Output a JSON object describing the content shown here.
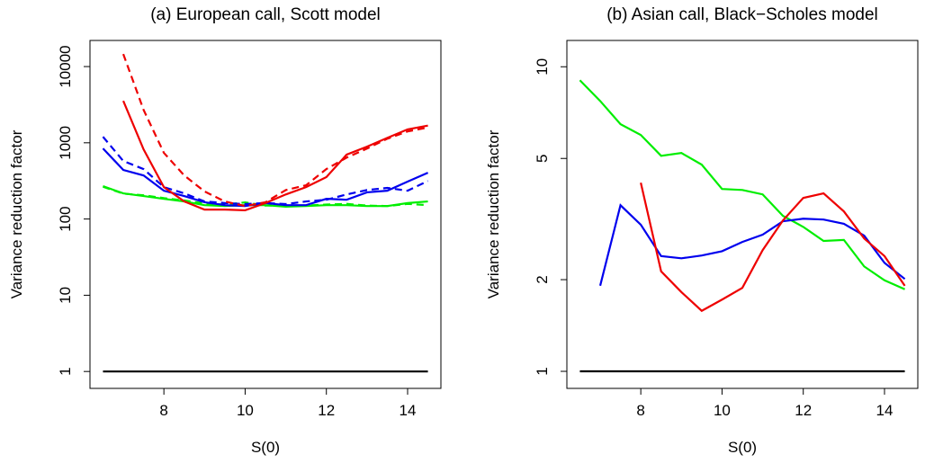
{
  "chart_data": [
    {
      "type": "line",
      "title": "(a) European call, Scott model",
      "xlabel": "S(0)",
      "ylabel": "Variance reduction factor",
      "log_y": true,
      "xlim": [
        6.18,
        14.82
      ],
      "ylim": [
        0.6,
        22000
      ],
      "xticks": [
        8,
        10,
        12,
        14
      ],
      "yticks": [
        1,
        10,
        100,
        1000,
        10000
      ],
      "x": [
        6.5,
        7,
        7.5,
        8,
        8.5,
        9,
        9.5,
        10,
        10.5,
        11,
        11.5,
        12,
        12.5,
        13,
        13.5,
        14,
        14.5
      ],
      "series": [
        {
          "color": "#000000",
          "dashed": false,
          "values": [
            1,
            1,
            1,
            1,
            1,
            1,
            1,
            1,
            1,
            1,
            1,
            1,
            1,
            1,
            1,
            1,
            1
          ]
        },
        {
          "color": "#00ee00",
          "dashed": false,
          "values": [
            270,
            217,
            200,
            184,
            170,
            152,
            148,
            152,
            152,
            145,
            148,
            152,
            152,
            148,
            148,
            162,
            170
          ]
        },
        {
          "color": "#00ee00",
          "dashed": true,
          "values": [
            265,
            215,
            205,
            188,
            175,
            160,
            155,
            165,
            150,
            150,
            150,
            155,
            158,
            150,
            148,
            158,
            152
          ]
        },
        {
          "color": "#0000ee",
          "dashed": false,
          "values": [
            844,
            440,
            373,
            235,
            200,
            166,
            152,
            148,
            162,
            152,
            152,
            184,
            179,
            224,
            235,
            310,
            405
          ]
        },
        {
          "color": "#0000ee",
          "dashed": true,
          "values": [
            1200,
            577,
            452,
            262,
            217,
            170,
            162,
            157,
            162,
            157,
            170,
            179,
            210,
            240,
            256,
            235,
            316
          ]
        },
        {
          "color": "#ee0000",
          "dashed": false,
          "values": [
            null,
            3550,
            820,
            262,
            170,
            133,
            133,
            130,
            162,
            210,
            262,
            355,
            700,
            890,
            1160,
            1500,
            1680
          ]
        },
        {
          "color": "#ee0000",
          "dashed": true,
          "values": [
            null,
            14600,
            2700,
            737,
            373,
            230,
            170,
            148,
            166,
            240,
            277,
            452,
            640,
            840,
            1130,
            1410,
            1590
          ]
        }
      ]
    },
    {
      "type": "line",
      "title": "(b) Asian call, Black−Scholes model",
      "xlabel": "S(0)",
      "ylabel": "Variance reduction factor",
      "log_y": true,
      "xlim": [
        6.18,
        14.82
      ],
      "ylim": [
        0.879,
        12.2
      ],
      "xticks": [
        8,
        10,
        12,
        14
      ],
      "yticks": [
        1,
        2,
        5,
        10
      ],
      "x": [
        6.5,
        7,
        7.5,
        8,
        8.5,
        9,
        9.5,
        10,
        10.5,
        11,
        11.5,
        12,
        12.5,
        13,
        13.5,
        14,
        14.5
      ],
      "series": [
        {
          "color": "#000000",
          "dashed": false,
          "values": [
            1,
            1,
            1,
            1,
            1,
            1,
            1,
            1,
            1,
            1,
            1,
            1,
            1,
            1,
            1,
            1,
            1
          ]
        },
        {
          "color": "#00ee00",
          "dashed": false,
          "values": [
            9.03,
            7.72,
            6.48,
            5.97,
            5.1,
            5.21,
            4.77,
            3.97,
            3.94,
            3.81,
            3.24,
            2.98,
            2.68,
            2.7,
            2.21,
            1.99,
            1.86
          ]
        },
        {
          "color": "#0000ee",
          "dashed": false,
          "values": [
            null,
            1.91,
            3.51,
            3.03,
            2.39,
            2.35,
            2.4,
            2.48,
            2.66,
            2.81,
            3.11,
            3.17,
            3.15,
            3.05,
            2.79,
            2.27,
            2.01
          ]
        },
        {
          "color": "#ee0000",
          "dashed": false,
          "values": [
            null,
            null,
            null,
            4.16,
            2.13,
            1.82,
            1.58,
            1.72,
            1.88,
            2.5,
            3.13,
            3.71,
            3.84,
            3.35,
            2.73,
            2.39,
            1.91
          ]
        }
      ]
    }
  ]
}
